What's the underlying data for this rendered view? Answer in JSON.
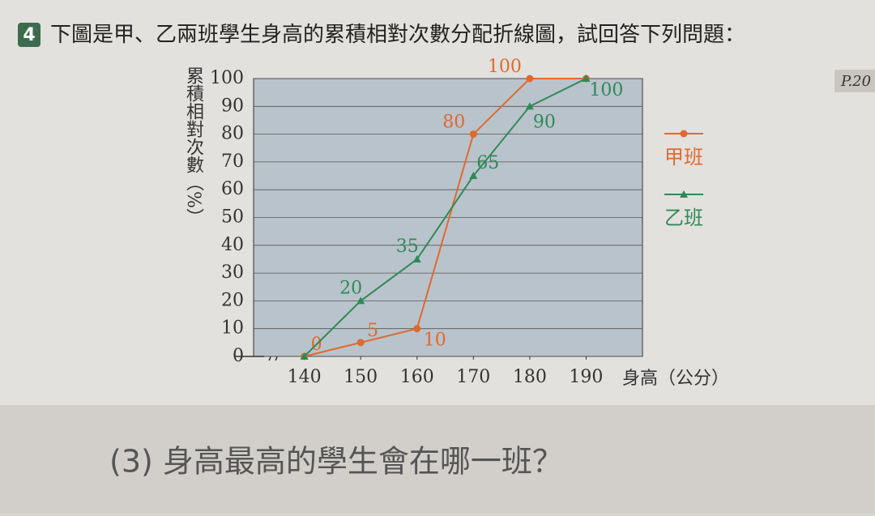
{
  "header": {
    "number": "4",
    "question": "下圖是甲、乙兩班學生身高的累積相對次數分配折線圖，試回答下列問題：",
    "page_ref": "P.20"
  },
  "chart_data": {
    "type": "line",
    "x_label": "身高（公分）",
    "y_label": "累積相對次數（%）",
    "x": [
      140,
      150,
      160,
      170,
      180,
      190
    ],
    "series": [
      {
        "name": "甲班",
        "color": "#e0692f",
        "marker": "circle",
        "values": [
          0,
          5,
          10,
          80,
          100,
          100
        ],
        "value_labels": [
          "0",
          "5",
          "10",
          "80",
          "100",
          null
        ]
      },
      {
        "name": "乙班",
        "color": "#2e8a57",
        "marker": "triangle",
        "values": [
          0,
          20,
          35,
          65,
          90,
          100
        ],
        "value_labels": [
          null,
          "20",
          "35",
          "65",
          "90",
          "100"
        ]
      }
    ],
    "xlim": [
      131,
      200
    ],
    "xticks": [
      140,
      150,
      160,
      170,
      180,
      190
    ],
    "ylim": [
      0,
      100
    ],
    "yticks": [
      0,
      10,
      20,
      30,
      40,
      50,
      60,
      70,
      80,
      90,
      100
    ],
    "grid": true,
    "legend": "right"
  },
  "question3": "(3) 身高最高的學生會在哪一班？"
}
